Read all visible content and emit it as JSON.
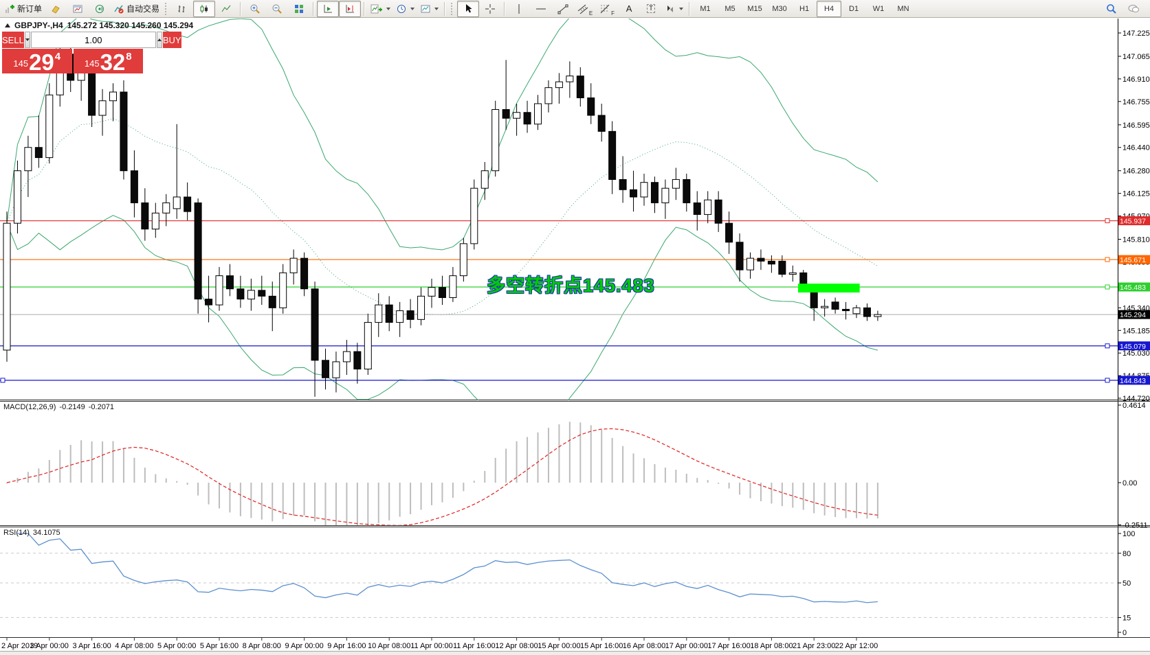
{
  "toolbar": {
    "new_order": "新订单",
    "autotrade": "自动交易",
    "timeframes": [
      "M1",
      "M5",
      "M15",
      "M30",
      "H1",
      "H4",
      "D1",
      "W1",
      "MN"
    ],
    "active_timeframe": "H4",
    "text_tool": "A",
    "label_tool": "T",
    "channel_letter": "E",
    "fibo_letter": "F"
  },
  "trade_panel": {
    "sell_label": "SELL",
    "buy_label": "BUY",
    "volume": "1.00",
    "sell_price_prefix": "145",
    "sell_price_big": "29",
    "sell_price_sup": "4",
    "buy_price_prefix": "145",
    "buy_price_big": "32",
    "buy_price_sup": "8",
    "panel_color": "#e03c3c"
  },
  "chart_header": {
    "title": "GBPJPY-,H4",
    "quote_text": "145.272 145.320 145.260 145.294"
  },
  "indicator_labels": {
    "macd_label": "MACD(12,26,9)",
    "macd_value": "-0.2149",
    "macd_signal": "-0.2071",
    "rsi_label": "RSI(14)",
    "rsi_value": "34.1075"
  },
  "chart_data": {
    "type": "candlestick",
    "symbol": "GBPJPY-",
    "timeframe": "H4",
    "quote": {
      "open": 145.272,
      "high": 145.32,
      "low": 145.26,
      "close": 145.294
    },
    "bid": 145.294,
    "price_ticks": [
      147.225,
      147.065,
      146.91,
      146.755,
      146.595,
      146.44,
      146.28,
      146.125,
      145.97,
      145.81,
      145.655,
      145.495,
      145.34,
      145.185,
      145.03,
      144.875,
      144.72
    ],
    "time_labels": [
      "2 Apr 2019",
      "3 Apr 00:00",
      "3 Apr 16:00",
      "4 Apr 08:00",
      "5 Apr 00:00",
      "5 Apr 16:00",
      "8 Apr 08:00",
      "9 Apr 00:00",
      "9 Apr 16:00",
      "10 Apr 08:00",
      "11 Apr 00:00",
      "11 Apr 16:00",
      "12 Apr 08:00",
      "15 Apr 00:00",
      "15 Apr 16:00",
      "16 Apr 08:00",
      "17 Apr 00:00",
      "17 Apr 16:00",
      "18 Apr 08:00",
      "21 Apr 23:00",
      "22 Apr 12:00"
    ],
    "candles": [
      [
        145.05,
        146.0,
        144.97,
        145.92
      ],
      [
        145.92,
        146.35,
        145.85,
        146.28
      ],
      [
        146.28,
        146.52,
        146.1,
        146.44
      ],
      [
        146.44,
        146.66,
        146.3,
        146.37
      ],
      [
        146.37,
        146.88,
        146.33,
        146.8
      ],
      [
        146.8,
        147.21,
        146.72,
        147.08
      ],
      [
        147.08,
        147.18,
        146.82,
        146.9
      ],
      [
        146.9,
        147.06,
        146.76,
        146.98
      ],
      [
        146.98,
        147.02,
        146.58,
        146.66
      ],
      [
        146.66,
        146.84,
        146.52,
        146.76
      ],
      [
        146.76,
        146.88,
        146.62,
        146.82
      ],
      [
        146.82,
        146.9,
        146.22,
        146.28
      ],
      [
        146.28,
        146.42,
        145.96,
        146.06
      ],
      [
        146.06,
        146.16,
        145.8,
        145.88
      ],
      [
        145.88,
        146.06,
        145.82,
        145.99
      ],
      [
        145.99,
        146.12,
        145.9,
        146.06
      ],
      [
        146.02,
        146.6,
        145.95,
        146.1
      ],
      [
        146.1,
        146.2,
        145.94,
        146.0
      ],
      [
        146.06,
        146.09,
        145.3,
        145.4
      ],
      [
        145.4,
        145.56,
        145.24,
        145.36
      ],
      [
        145.36,
        145.62,
        145.32,
        145.56
      ],
      [
        145.56,
        145.64,
        145.42,
        145.47
      ],
      [
        145.47,
        145.56,
        145.34,
        145.4
      ],
      [
        145.4,
        145.54,
        145.32,
        145.46
      ],
      [
        145.46,
        145.56,
        145.36,
        145.42
      ],
      [
        145.42,
        145.52,
        145.18,
        145.34
      ],
      [
        145.34,
        145.64,
        145.3,
        145.58
      ],
      [
        145.58,
        145.74,
        145.5,
        145.68
      ],
      [
        145.68,
        145.72,
        145.42,
        145.47
      ],
      [
        145.47,
        145.52,
        144.73,
        144.98
      ],
      [
        144.98,
        145.06,
        144.78,
        144.86
      ],
      [
        144.86,
        145.04,
        144.76,
        144.97
      ],
      [
        144.97,
        145.12,
        144.88,
        145.04
      ],
      [
        145.04,
        145.1,
        144.82,
        144.92
      ],
      [
        144.92,
        145.3,
        144.88,
        145.24
      ],
      [
        145.24,
        145.44,
        145.14,
        145.36
      ],
      [
        145.36,
        145.42,
        145.18,
        145.24
      ],
      [
        145.24,
        145.38,
        145.14,
        145.32
      ],
      [
        145.32,
        145.4,
        145.2,
        145.26
      ],
      [
        145.26,
        145.48,
        145.22,
        145.42
      ],
      [
        145.42,
        145.54,
        145.34,
        145.48
      ],
      [
        145.48,
        145.56,
        145.36,
        145.41
      ],
      [
        145.41,
        145.62,
        145.38,
        145.56
      ],
      [
        145.56,
        145.82,
        145.52,
        145.78
      ],
      [
        145.78,
        146.22,
        145.74,
        146.16
      ],
      [
        146.16,
        146.34,
        146.08,
        146.28
      ],
      [
        146.28,
        146.76,
        146.24,
        146.7
      ],
      [
        146.7,
        147.04,
        146.56,
        146.64
      ],
      [
        146.64,
        146.74,
        146.52,
        146.68
      ],
      [
        146.68,
        146.76,
        146.54,
        146.6
      ],
      [
        146.6,
        146.8,
        146.56,
        146.74
      ],
      [
        146.74,
        146.9,
        146.68,
        146.85
      ],
      [
        146.85,
        146.95,
        146.74,
        146.89
      ],
      [
        146.89,
        147.03,
        146.78,
        146.93
      ],
      [
        146.93,
        146.99,
        146.72,
        146.78
      ],
      [
        146.78,
        146.88,
        146.6,
        146.66
      ],
      [
        146.66,
        146.74,
        146.48,
        146.55
      ],
      [
        146.55,
        146.62,
        146.12,
        146.22
      ],
      [
        146.22,
        146.38,
        146.06,
        146.15
      ],
      [
        146.15,
        146.28,
        146.0,
        146.1
      ],
      [
        146.1,
        146.26,
        146.04,
        146.2
      ],
      [
        146.2,
        146.24,
        145.99,
        146.06
      ],
      [
        146.06,
        146.22,
        145.95,
        146.16
      ],
      [
        146.16,
        146.3,
        146.08,
        146.22
      ],
      [
        146.22,
        146.26,
        146.0,
        146.06
      ],
      [
        146.06,
        146.14,
        145.87,
        145.98
      ],
      [
        145.98,
        146.14,
        145.92,
        146.08
      ],
      [
        146.08,
        146.14,
        145.86,
        145.92
      ],
      [
        145.92,
        146.0,
        145.71,
        145.79
      ],
      [
        145.79,
        145.85,
        145.52,
        145.6
      ],
      [
        145.6,
        145.72,
        145.54,
        145.68
      ],
      [
        145.68,
        145.74,
        145.6,
        145.66
      ],
      [
        145.66,
        145.7,
        145.58,
        145.64
      ],
      [
        145.66,
        145.7,
        145.55,
        145.57
      ],
      [
        145.57,
        145.63,
        145.52,
        145.58
      ],
      [
        145.58,
        145.6,
        145.47,
        145.49
      ],
      [
        145.45,
        145.47,
        145.25,
        145.34
      ],
      [
        145.34,
        145.4,
        145.28,
        145.35
      ],
      [
        145.38,
        145.41,
        145.3,
        145.33
      ],
      [
        145.33,
        145.38,
        145.26,
        145.32
      ],
      [
        145.3,
        145.36,
        145.27,
        145.34
      ],
      [
        145.34,
        145.37,
        145.25,
        145.28
      ],
      [
        145.28,
        145.32,
        145.25,
        145.294
      ]
    ],
    "bollinger": {
      "period": 20,
      "deviation": 2,
      "color": "#3aa76d"
    },
    "hlines": [
      {
        "price": 145.937,
        "color": "#e02b2b"
      },
      {
        "price": 145.671,
        "color": "#ff6600"
      },
      {
        "price": 145.483,
        "color": "#2fcf2f"
      },
      {
        "price": 145.079,
        "color": "#1717cf"
      },
      {
        "price": 144.843,
        "color": "#1717cf"
      }
    ],
    "highlight_box": {
      "from_index": 74.5,
      "to_index": 80.3,
      "top_price": 145.506,
      "bottom_price": 145.445,
      "color": "#00ff00"
    },
    "annotation": {
      "text": "多空转折点145.483",
      "color": "#00cc00",
      "outline": "#2233bb"
    },
    "macd": {
      "params": [
        12,
        26,
        9
      ],
      "scale_max": 0.4614,
      "scale_zero": "0.00",
      "scale_min": -0.2511,
      "histogram_color": "#bdbdbd",
      "signal_color": "#e02020",
      "current": -0.2149,
      "current_signal": -0.2071
    },
    "rsi": {
      "period": 14,
      "levels": [
        80,
        50,
        15
      ],
      "scale_ticks": [
        100,
        80,
        50,
        15,
        0
      ],
      "color": "#5b8fd0",
      "current": 34.1075
    }
  }
}
